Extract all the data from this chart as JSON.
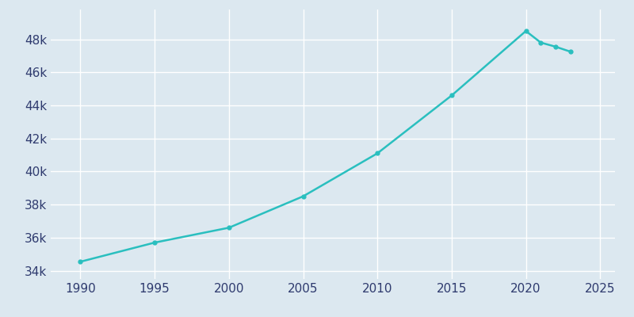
{
  "years": [
    1990,
    1995,
    2000,
    2005,
    2010,
    2015,
    2020,
    2021,
    2022,
    2023
  ],
  "population": [
    34544,
    35700,
    36600,
    38500,
    41100,
    44600,
    48500,
    47800,
    47550,
    47250
  ],
  "line_color": "#2abfbf",
  "marker_color": "#2abfbf",
  "background_color": "#dce8f0",
  "plot_bg_color": "#dce8f0",
  "grid_color": "#ffffff",
  "tick_color": "#2e3a6e",
  "xlim": [
    1988,
    2026
  ],
  "ylim": [
    33500,
    49800
  ],
  "xticks": [
    1990,
    1995,
    2000,
    2005,
    2010,
    2015,
    2020,
    2025
  ],
  "yticks": [
    34000,
    36000,
    38000,
    40000,
    42000,
    44000,
    46000,
    48000
  ]
}
